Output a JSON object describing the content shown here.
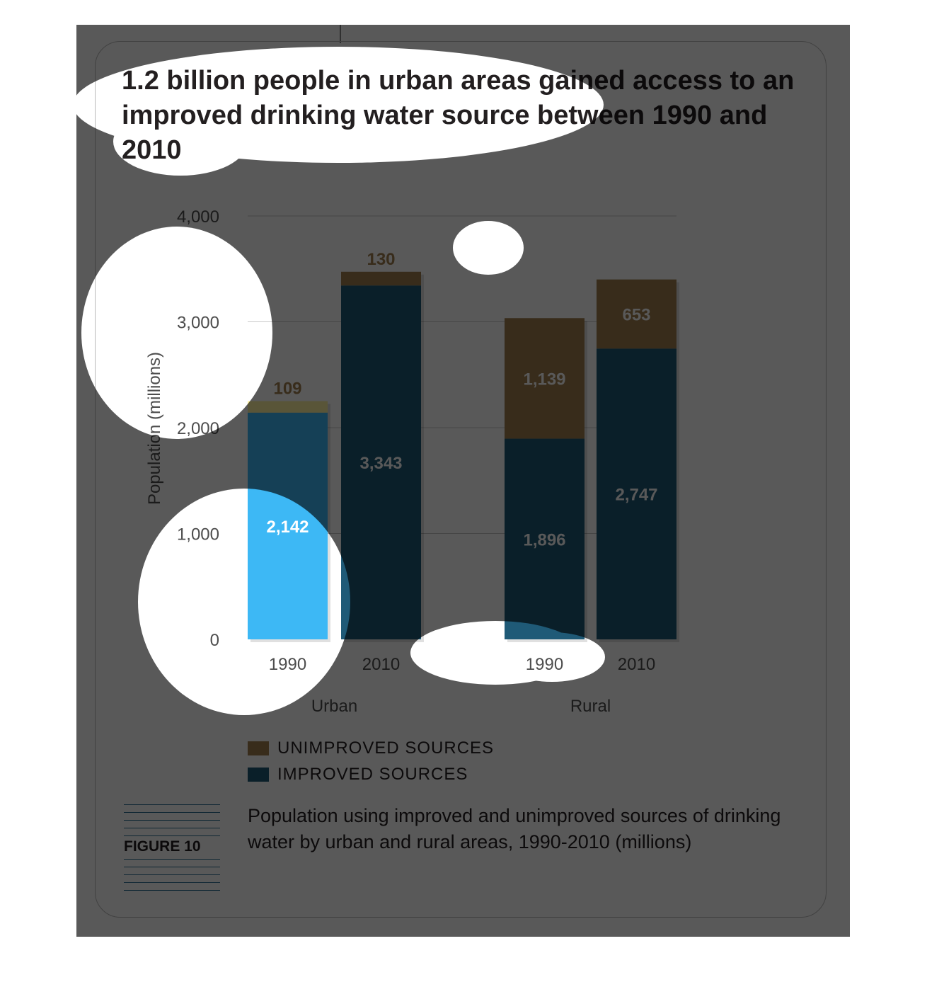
{
  "headline": "1.2 billion people in urban areas gained access to an improved drinking water source between 1990 and 2010",
  "figure_label": "FIGURE 10",
  "caption": "Population using improved and unimproved sources of drinking water by urban and rural areas, 1990-2010 (millions)",
  "legend": {
    "unimproved": "UNIMPROVED SOURCES",
    "improved": "IMPROVED SOURCES"
  },
  "colors": {
    "unimproved": "#a07f4f",
    "improved": "#1f5a77",
    "improved_highlight": "#3db8f5",
    "unimproved_highlight": "#fff2a0",
    "dim_overlay": "#000000"
  },
  "chart_data": {
    "type": "bar",
    "stacked": true,
    "ylabel": "Population (millions)",
    "ylim": [
      0,
      4000
    ],
    "yticks": [
      0,
      1000,
      2000,
      3000,
      4000
    ],
    "ytick_labels": [
      "0",
      "1,000",
      "2,000",
      "3,000",
      "4,000"
    ],
    "grid": true,
    "groups": [
      {
        "name": "Urban",
        "bars": [
          {
            "label": "1990",
            "improved": 2142,
            "unimproved": 109,
            "improved_label": "2,142",
            "unimproved_label": "109",
            "highlight": true
          },
          {
            "label": "2010",
            "improved": 3343,
            "unimproved": 130,
            "improved_label": "3,343",
            "unimproved_label": "130",
            "highlight": false
          }
        ]
      },
      {
        "name": "Rural",
        "bars": [
          {
            "label": "1990",
            "improved": 1896,
            "unimproved": 1139,
            "improved_label": "1,896",
            "unimproved_label": "1,139",
            "highlight": false
          },
          {
            "label": "2010",
            "improved": 2747,
            "unimproved": 653,
            "improved_label": "2,747",
            "unimproved_label": "653",
            "highlight": false
          }
        ]
      }
    ]
  }
}
